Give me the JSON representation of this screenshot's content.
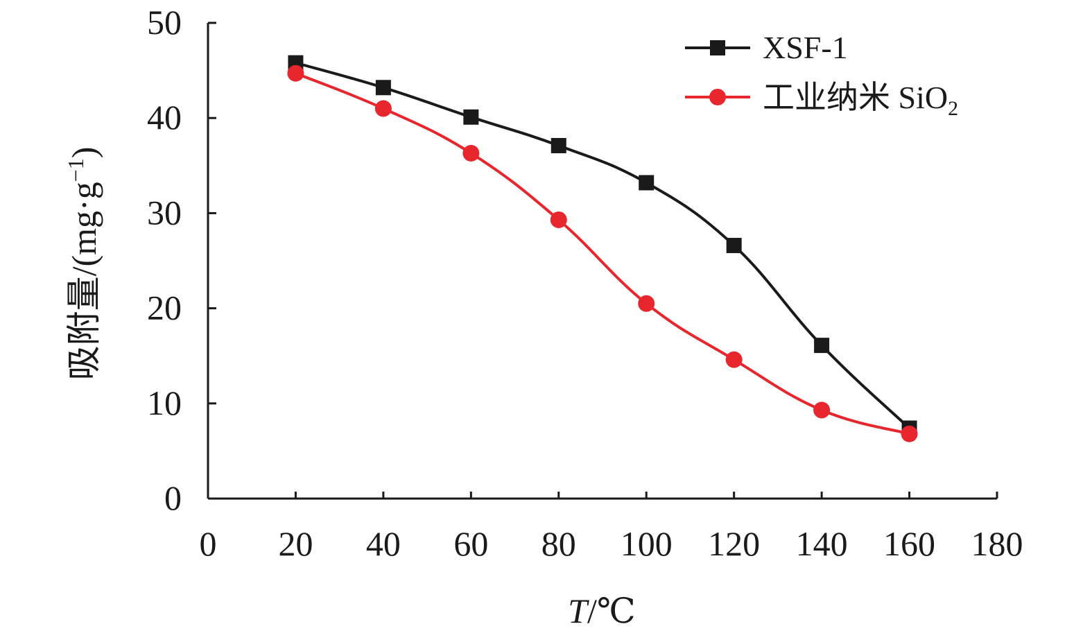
{
  "chart_data": {
    "type": "line",
    "xlabel_italic": "T",
    "xlabel_rest": "/℃",
    "ylabel": "吸附量/(mg·g",
    "ylabel_sup": "−1",
    "ylabel_close": ")",
    "xlim": [
      0,
      180
    ],
    "ylim": [
      0,
      50
    ],
    "xticks": [
      0,
      20,
      40,
      60,
      80,
      100,
      120,
      140,
      160,
      180
    ],
    "yticks": [
      0,
      10,
      20,
      30,
      40,
      50
    ],
    "grid": false,
    "legend_position": "top-right",
    "x": [
      20,
      40,
      60,
      80,
      100,
      120,
      140,
      160
    ],
    "series": [
      {
        "name": "XSF-1",
        "marker": "square",
        "color": "#1a1a1a",
        "values": [
          45.8,
          43.2,
          40.1,
          37.1,
          33.2,
          26.6,
          16.1,
          7.4
        ]
      },
      {
        "name": "工业纳米 SiO",
        "name_sub": "2",
        "marker": "circle",
        "color": "#e8262d",
        "values": [
          44.7,
          41.0,
          36.3,
          29.3,
          20.5,
          14.6,
          9.3,
          6.8
        ]
      }
    ]
  }
}
